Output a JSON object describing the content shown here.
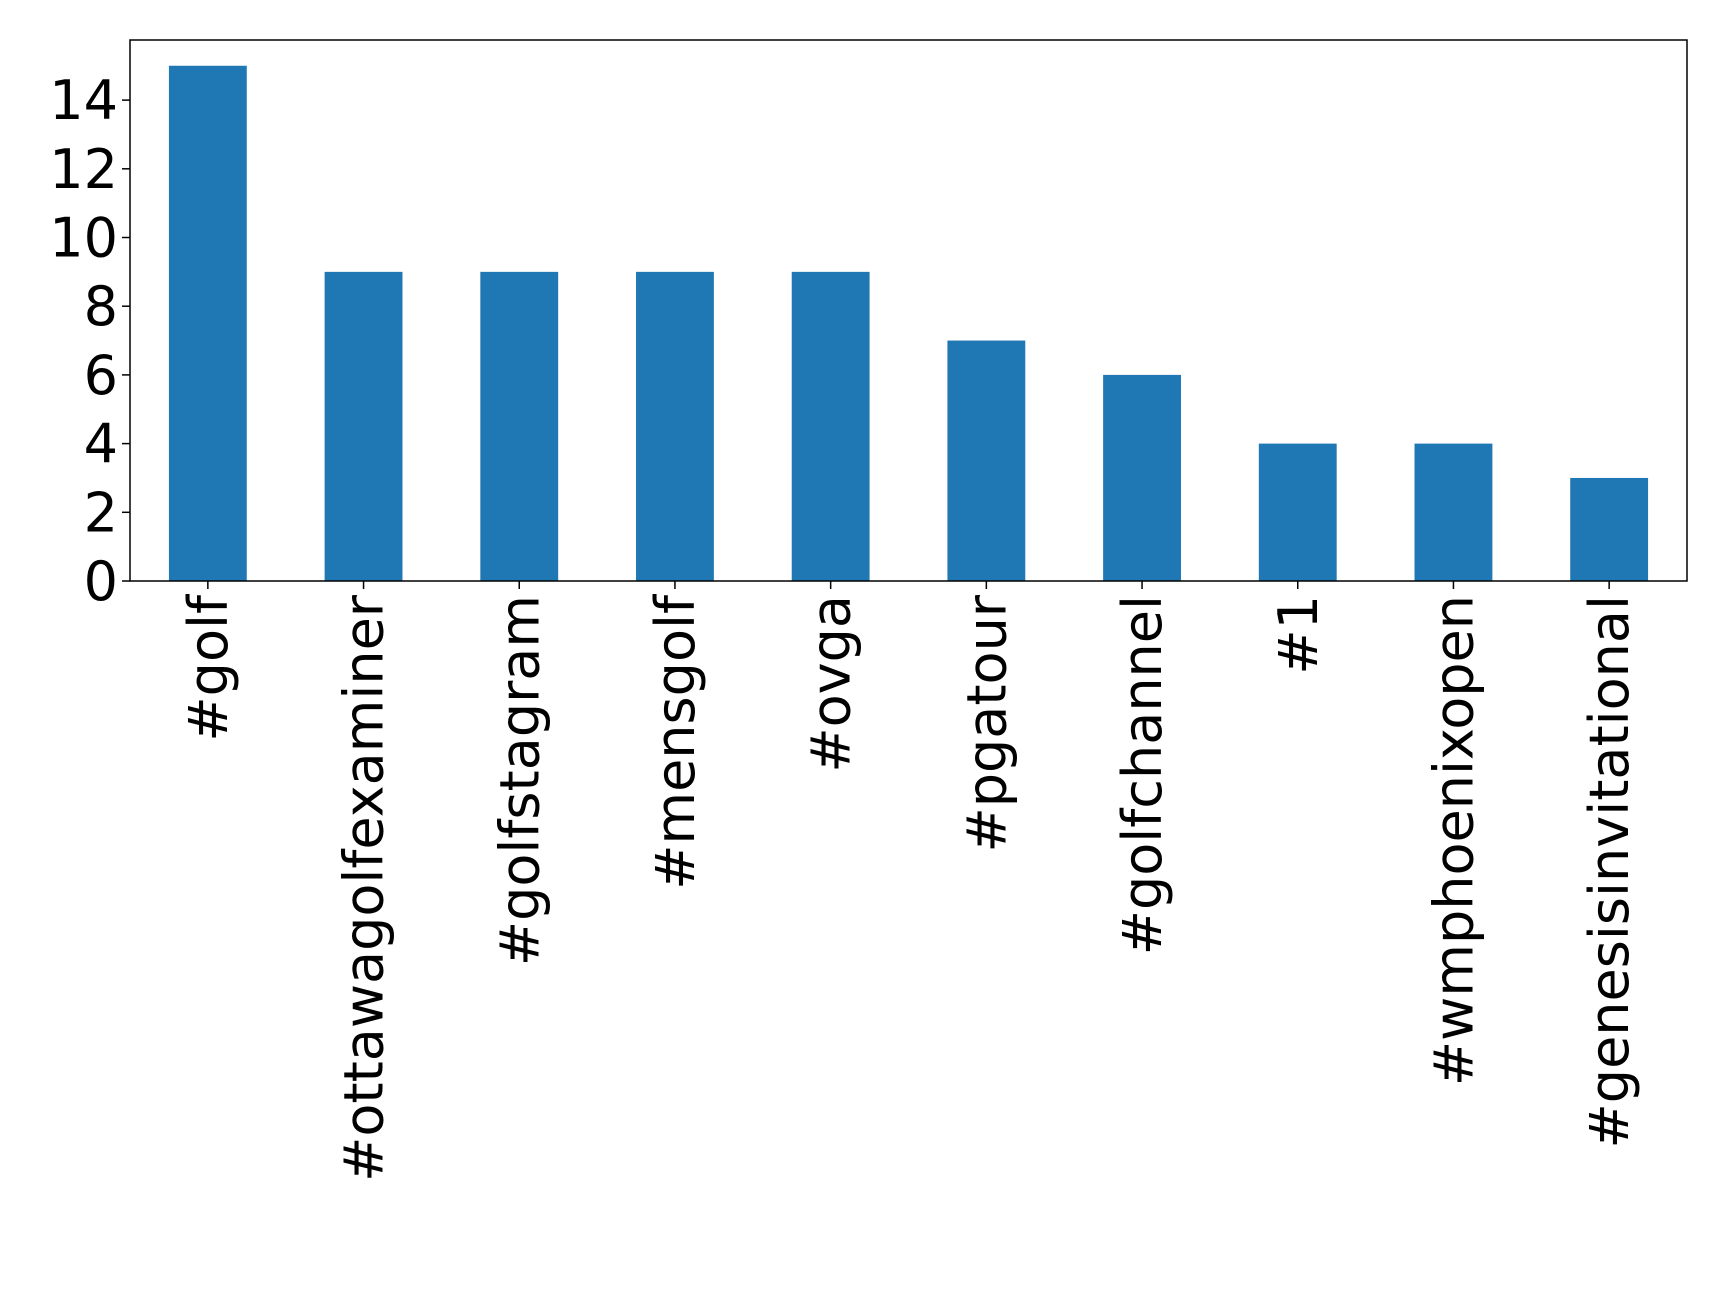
{
  "chart_data": {
    "type": "bar",
    "categories": [
      "#golf",
      "#ottawagolfexaminer",
      "#golfstagram",
      "#mensgolf",
      "#ovga",
      "#pgatour",
      "#golfchannel",
      "#1",
      "#wmphoenixopen",
      "#genesisinvitational"
    ],
    "values": [
      15,
      9,
      9,
      9,
      9,
      7,
      6,
      4,
      4,
      3
    ],
    "color": "#1f77b4",
    "ylim": [
      0,
      15.75
    ],
    "yticks": [
      0,
      2,
      4,
      6,
      8,
      10,
      12,
      14
    ],
    "grid": false
  }
}
